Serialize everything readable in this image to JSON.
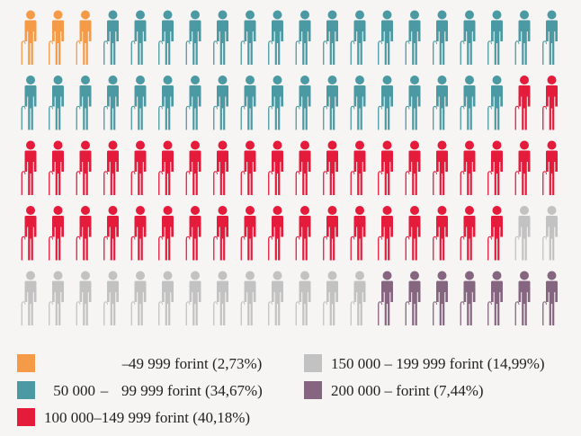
{
  "chart_data": {
    "type": "pictograph",
    "total_icons": 100,
    "rows": 5,
    "icons_per_row": 20,
    "icon": "elderly-person-with-cane-icon",
    "categories": [
      {
        "from": "",
        "to": "49 999",
        "unit": "forint",
        "pct_label": "(2,73%)",
        "percent": 2.73,
        "icons": 3,
        "color": "#f59a46"
      },
      {
        "from": "50 000",
        "to": "99 999",
        "unit": "forint",
        "pct_label": "(34,67%)",
        "percent": 34.67,
        "icons": 35,
        "color": "#4b9aa3"
      },
      {
        "from": "100 000",
        "to": "149 999",
        "unit": "forint",
        "pct_label": "(40,18%)",
        "percent": 40.18,
        "icons": 40,
        "color": "#e41b3b"
      },
      {
        "from": "150 000",
        "to": "199 999",
        "unit": "forint",
        "pct_label": "(14,99%)",
        "percent": 14.99,
        "icons": 15,
        "color": "#c3c2c2"
      },
      {
        "from": "200 000",
        "to": "",
        "unit": "forint",
        "pct_label": "(7,44%)",
        "percent": 7.44,
        "icons": 7,
        "color": "#85657f"
      }
    ]
  },
  "legend": {
    "dash": "–"
  }
}
